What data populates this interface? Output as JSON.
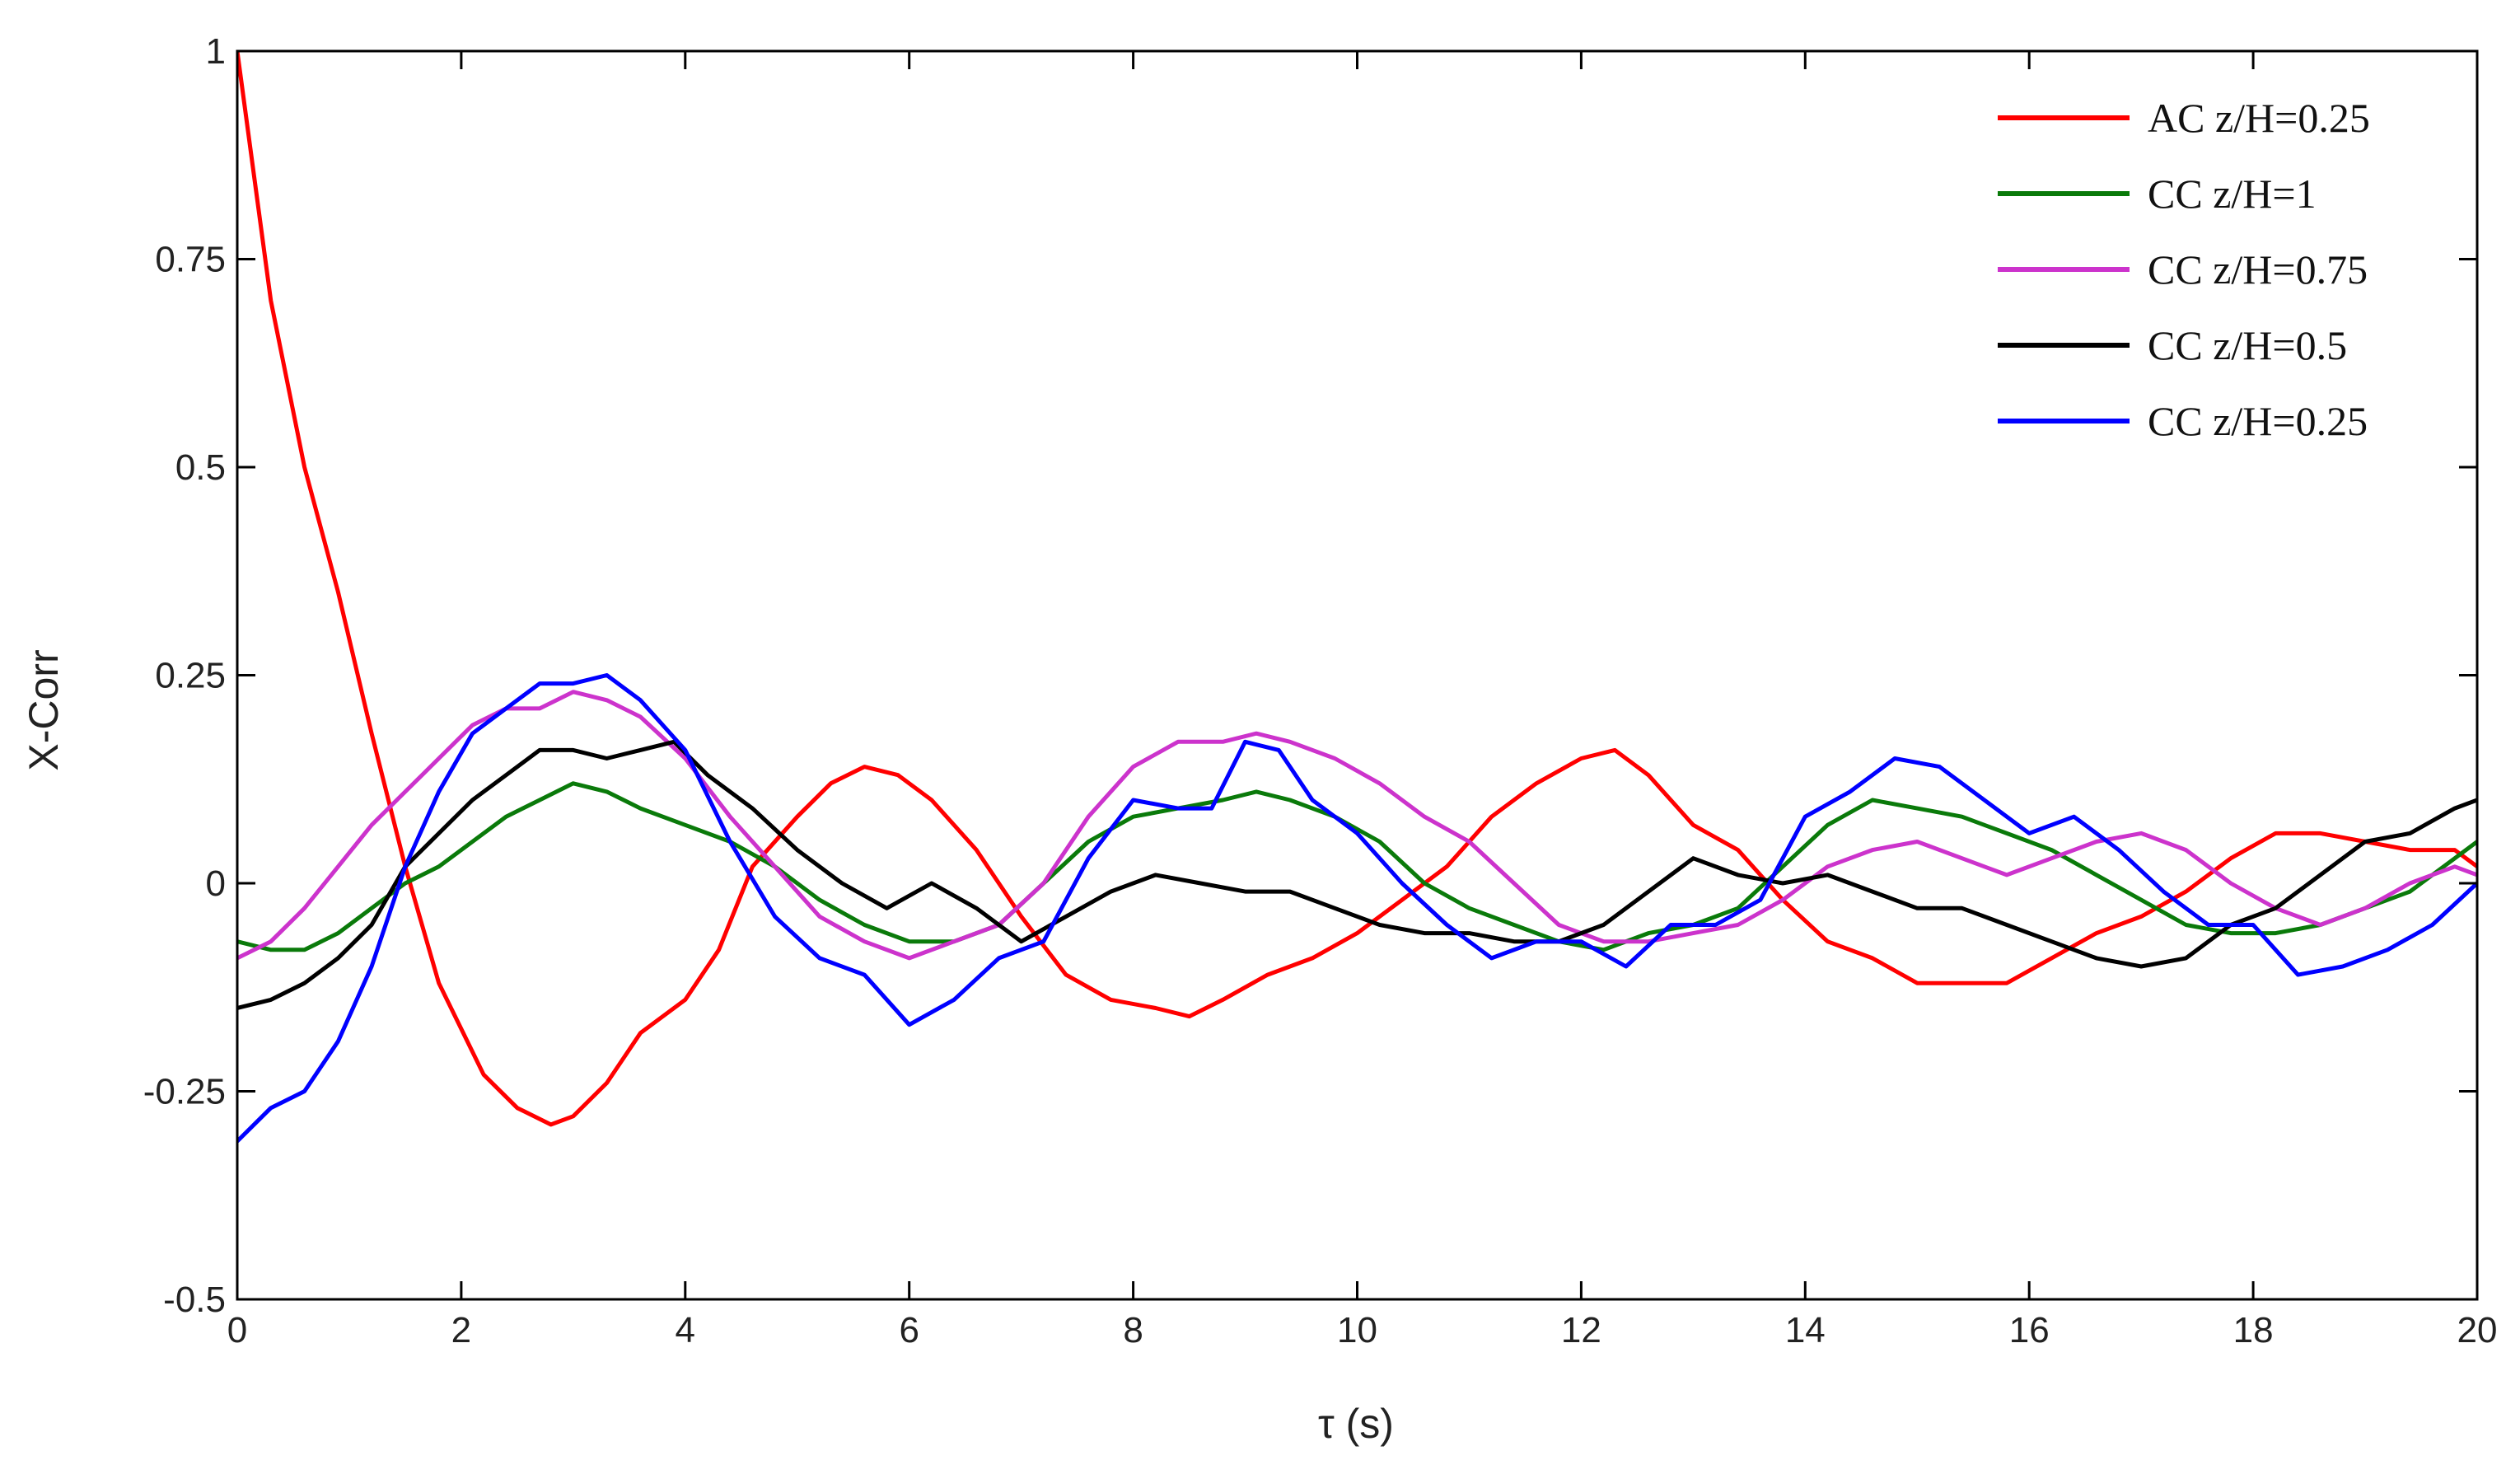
{
  "chart_data": {
    "type": "line",
    "title": "",
    "xlabel": "τ (s)",
    "ylabel": "X-Corr",
    "xlim": [
      0,
      20
    ],
    "ylim": [
      -0.5,
      1
    ],
    "xticks": [
      "0",
      "2",
      "4",
      "6",
      "8",
      "10",
      "12",
      "14",
      "16",
      "18",
      "20"
    ],
    "yticks": [
      "-0.5",
      "-0.25",
      "0",
      "0.25",
      "0.5",
      "0.75",
      "1"
    ],
    "grid": false,
    "legend_position": "top-right",
    "series": [
      {
        "name": "AC z/H=0.25",
        "color": "#ff0000",
        "x": [
          0,
          0.1,
          0.3,
          0.6,
          0.9,
          1.2,
          1.5,
          1.8,
          2.2,
          2.5,
          2.8,
          3.0,
          3.3,
          3.6,
          4.0,
          4.3,
          4.6,
          5.0,
          5.3,
          5.6,
          5.9,
          6.2,
          6.6,
          7.0,
          7.4,
          7.8,
          8.2,
          8.5,
          8.8,
          9.2,
          9.6,
          10.0,
          10.4,
          10.8,
          11.2,
          11.6,
          12.0,
          12.3,
          12.6,
          13.0,
          13.4,
          13.8,
          14.2,
          14.6,
          15.0,
          15.4,
          15.8,
          16.2,
          16.6,
          17.0,
          17.4,
          17.8,
          18.2,
          18.6,
          19.0,
          19.4,
          19.8,
          20.0
        ],
        "y": [
          1.0,
          0.9,
          0.7,
          0.5,
          0.35,
          0.18,
          0.02,
          -0.12,
          -0.23,
          -0.27,
          -0.29,
          -0.28,
          -0.24,
          -0.18,
          -0.14,
          -0.08,
          0.02,
          0.08,
          0.12,
          0.14,
          0.13,
          0.1,
          0.04,
          -0.04,
          -0.11,
          -0.14,
          -0.15,
          -0.16,
          -0.14,
          -0.11,
          -0.09,
          -0.06,
          -0.02,
          0.02,
          0.08,
          0.12,
          0.15,
          0.16,
          0.13,
          0.07,
          0.04,
          -0.02,
          -0.07,
          -0.09,
          -0.12,
          -0.12,
          -0.12,
          -0.09,
          -0.06,
          -0.04,
          -0.01,
          0.03,
          0.06,
          0.06,
          0.05,
          0.04,
          0.04,
          0.02
        ]
      },
      {
        "name": "CC z/H=1",
        "color": "#0a7a0a",
        "x": [
          0,
          0.3,
          0.6,
          0.9,
          1.2,
          1.5,
          1.8,
          2.1,
          2.4,
          2.7,
          3.0,
          3.3,
          3.6,
          4.0,
          4.4,
          4.8,
          5.2,
          5.6,
          6.0,
          6.4,
          6.8,
          7.2,
          7.6,
          8.0,
          8.4,
          8.8,
          9.1,
          9.4,
          9.8,
          10.2,
          10.6,
          11.0,
          11.4,
          11.8,
          12.2,
          12.6,
          13.0,
          13.4,
          13.8,
          14.2,
          14.6,
          15.0,
          15.4,
          15.8,
          16.2,
          16.6,
          17.0,
          17.4,
          17.8,
          18.2,
          18.6,
          19.0,
          19.4,
          19.8,
          20.0
        ],
        "y": [
          -0.07,
          -0.08,
          -0.08,
          -0.06,
          -0.03,
          0.0,
          0.02,
          0.05,
          0.08,
          0.1,
          0.12,
          0.11,
          0.09,
          0.07,
          0.05,
          0.02,
          -0.02,
          -0.05,
          -0.07,
          -0.07,
          -0.05,
          0.0,
          0.05,
          0.08,
          0.09,
          0.1,
          0.11,
          0.1,
          0.08,
          0.05,
          0.0,
          -0.03,
          -0.05,
          -0.07,
          -0.08,
          -0.06,
          -0.05,
          -0.03,
          0.02,
          0.07,
          0.1,
          0.09,
          0.08,
          0.06,
          0.04,
          0.01,
          -0.02,
          -0.05,
          -0.06,
          -0.06,
          -0.05,
          -0.03,
          -0.01,
          0.03,
          0.05
        ]
      },
      {
        "name": "CC z/H=0.75",
        "color": "#cc33cc",
        "x": [
          0,
          0.3,
          0.6,
          0.9,
          1.2,
          1.5,
          1.8,
          2.1,
          2.4,
          2.7,
          3.0,
          3.3,
          3.6,
          4.0,
          4.4,
          4.8,
          5.2,
          5.6,
          6.0,
          6.4,
          6.8,
          7.2,
          7.6,
          8.0,
          8.4,
          8.8,
          9.1,
          9.4,
          9.8,
          10.2,
          10.6,
          11.0,
          11.4,
          11.8,
          12.2,
          12.6,
          13.0,
          13.4,
          13.8,
          14.2,
          14.6,
          15.0,
          15.4,
          15.8,
          16.2,
          16.6,
          17.0,
          17.4,
          17.8,
          18.2,
          18.6,
          19.0,
          19.4,
          19.8,
          20.0
        ],
        "y": [
          -0.09,
          -0.07,
          -0.03,
          0.02,
          0.07,
          0.11,
          0.15,
          0.19,
          0.21,
          0.21,
          0.23,
          0.22,
          0.2,
          0.15,
          0.08,
          0.02,
          -0.04,
          -0.07,
          -0.09,
          -0.07,
          -0.05,
          0.0,
          0.08,
          0.14,
          0.17,
          0.17,
          0.18,
          0.17,
          0.15,
          0.12,
          0.08,
          0.05,
          0.0,
          -0.05,
          -0.07,
          -0.07,
          -0.06,
          -0.05,
          -0.02,
          0.02,
          0.04,
          0.05,
          0.03,
          0.01,
          0.03,
          0.05,
          0.06,
          0.04,
          0.0,
          -0.03,
          -0.05,
          -0.03,
          0.0,
          0.02,
          0.01
        ]
      },
      {
        "name": "CC z/H=0.5",
        "color": "#000000",
        "x": [
          0,
          0.3,
          0.6,
          0.9,
          1.2,
          1.5,
          1.8,
          2.1,
          2.4,
          2.7,
          3.0,
          3.3,
          3.6,
          3.9,
          4.2,
          4.6,
          5.0,
          5.4,
          5.8,
          6.2,
          6.6,
          7.0,
          7.4,
          7.8,
          8.2,
          8.6,
          9.0,
          9.4,
          9.8,
          10.2,
          10.6,
          11.0,
          11.4,
          11.8,
          12.2,
          12.6,
          13.0,
          13.4,
          13.8,
          14.2,
          14.6,
          15.0,
          15.4,
          15.8,
          16.2,
          16.6,
          17.0,
          17.4,
          17.8,
          18.2,
          18.6,
          19.0,
          19.4,
          19.8,
          20.0
        ],
        "y": [
          -0.15,
          -0.14,
          -0.12,
          -0.09,
          -0.05,
          0.02,
          0.06,
          0.1,
          0.13,
          0.16,
          0.16,
          0.15,
          0.16,
          0.17,
          0.13,
          0.09,
          0.04,
          0.0,
          -0.03,
          0.0,
          -0.03,
          -0.07,
          -0.04,
          -0.01,
          0.01,
          0.0,
          -0.01,
          -0.01,
          -0.03,
          -0.05,
          -0.06,
          -0.06,
          -0.07,
          -0.07,
          -0.05,
          -0.01,
          0.03,
          0.01,
          0.0,
          0.01,
          -0.01,
          -0.03,
          -0.03,
          -0.05,
          -0.07,
          -0.09,
          -0.1,
          -0.09,
          -0.05,
          -0.03,
          0.01,
          0.05,
          0.06,
          0.09,
          0.1
        ]
      },
      {
        "name": "CC z/H=0.25",
        "color": "#0000ff",
        "x": [
          0,
          0.3,
          0.6,
          0.9,
          1.2,
          1.5,
          1.8,
          2.1,
          2.4,
          2.7,
          3.0,
          3.3,
          3.6,
          4.0,
          4.4,
          4.8,
          5.2,
          5.6,
          6.0,
          6.4,
          6.8,
          7.2,
          7.6,
          8.0,
          8.4,
          8.7,
          9.0,
          9.3,
          9.6,
          10.0,
          10.4,
          10.8,
          11.2,
          11.6,
          12.0,
          12.4,
          12.8,
          13.2,
          13.6,
          14.0,
          14.4,
          14.8,
          15.2,
          15.6,
          16.0,
          16.4,
          16.8,
          17.2,
          17.6,
          18.0,
          18.4,
          18.8,
          19.2,
          19.6,
          20.0
        ],
        "y": [
          -0.31,
          -0.27,
          -0.25,
          -0.19,
          -0.1,
          0.02,
          0.11,
          0.18,
          0.21,
          0.24,
          0.24,
          0.25,
          0.22,
          0.16,
          0.05,
          -0.04,
          -0.09,
          -0.11,
          -0.17,
          -0.14,
          -0.09,
          -0.07,
          0.03,
          0.1,
          0.09,
          0.09,
          0.17,
          0.16,
          0.1,
          0.06,
          0.0,
          -0.05,
          -0.09,
          -0.07,
          -0.07,
          -0.1,
          -0.05,
          -0.05,
          -0.02,
          0.08,
          0.11,
          0.15,
          0.14,
          0.1,
          0.06,
          0.08,
          0.04,
          -0.01,
          -0.05,
          -0.05,
          -0.11,
          -0.1,
          -0.08,
          -0.05,
          0.0
        ]
      }
    ]
  }
}
